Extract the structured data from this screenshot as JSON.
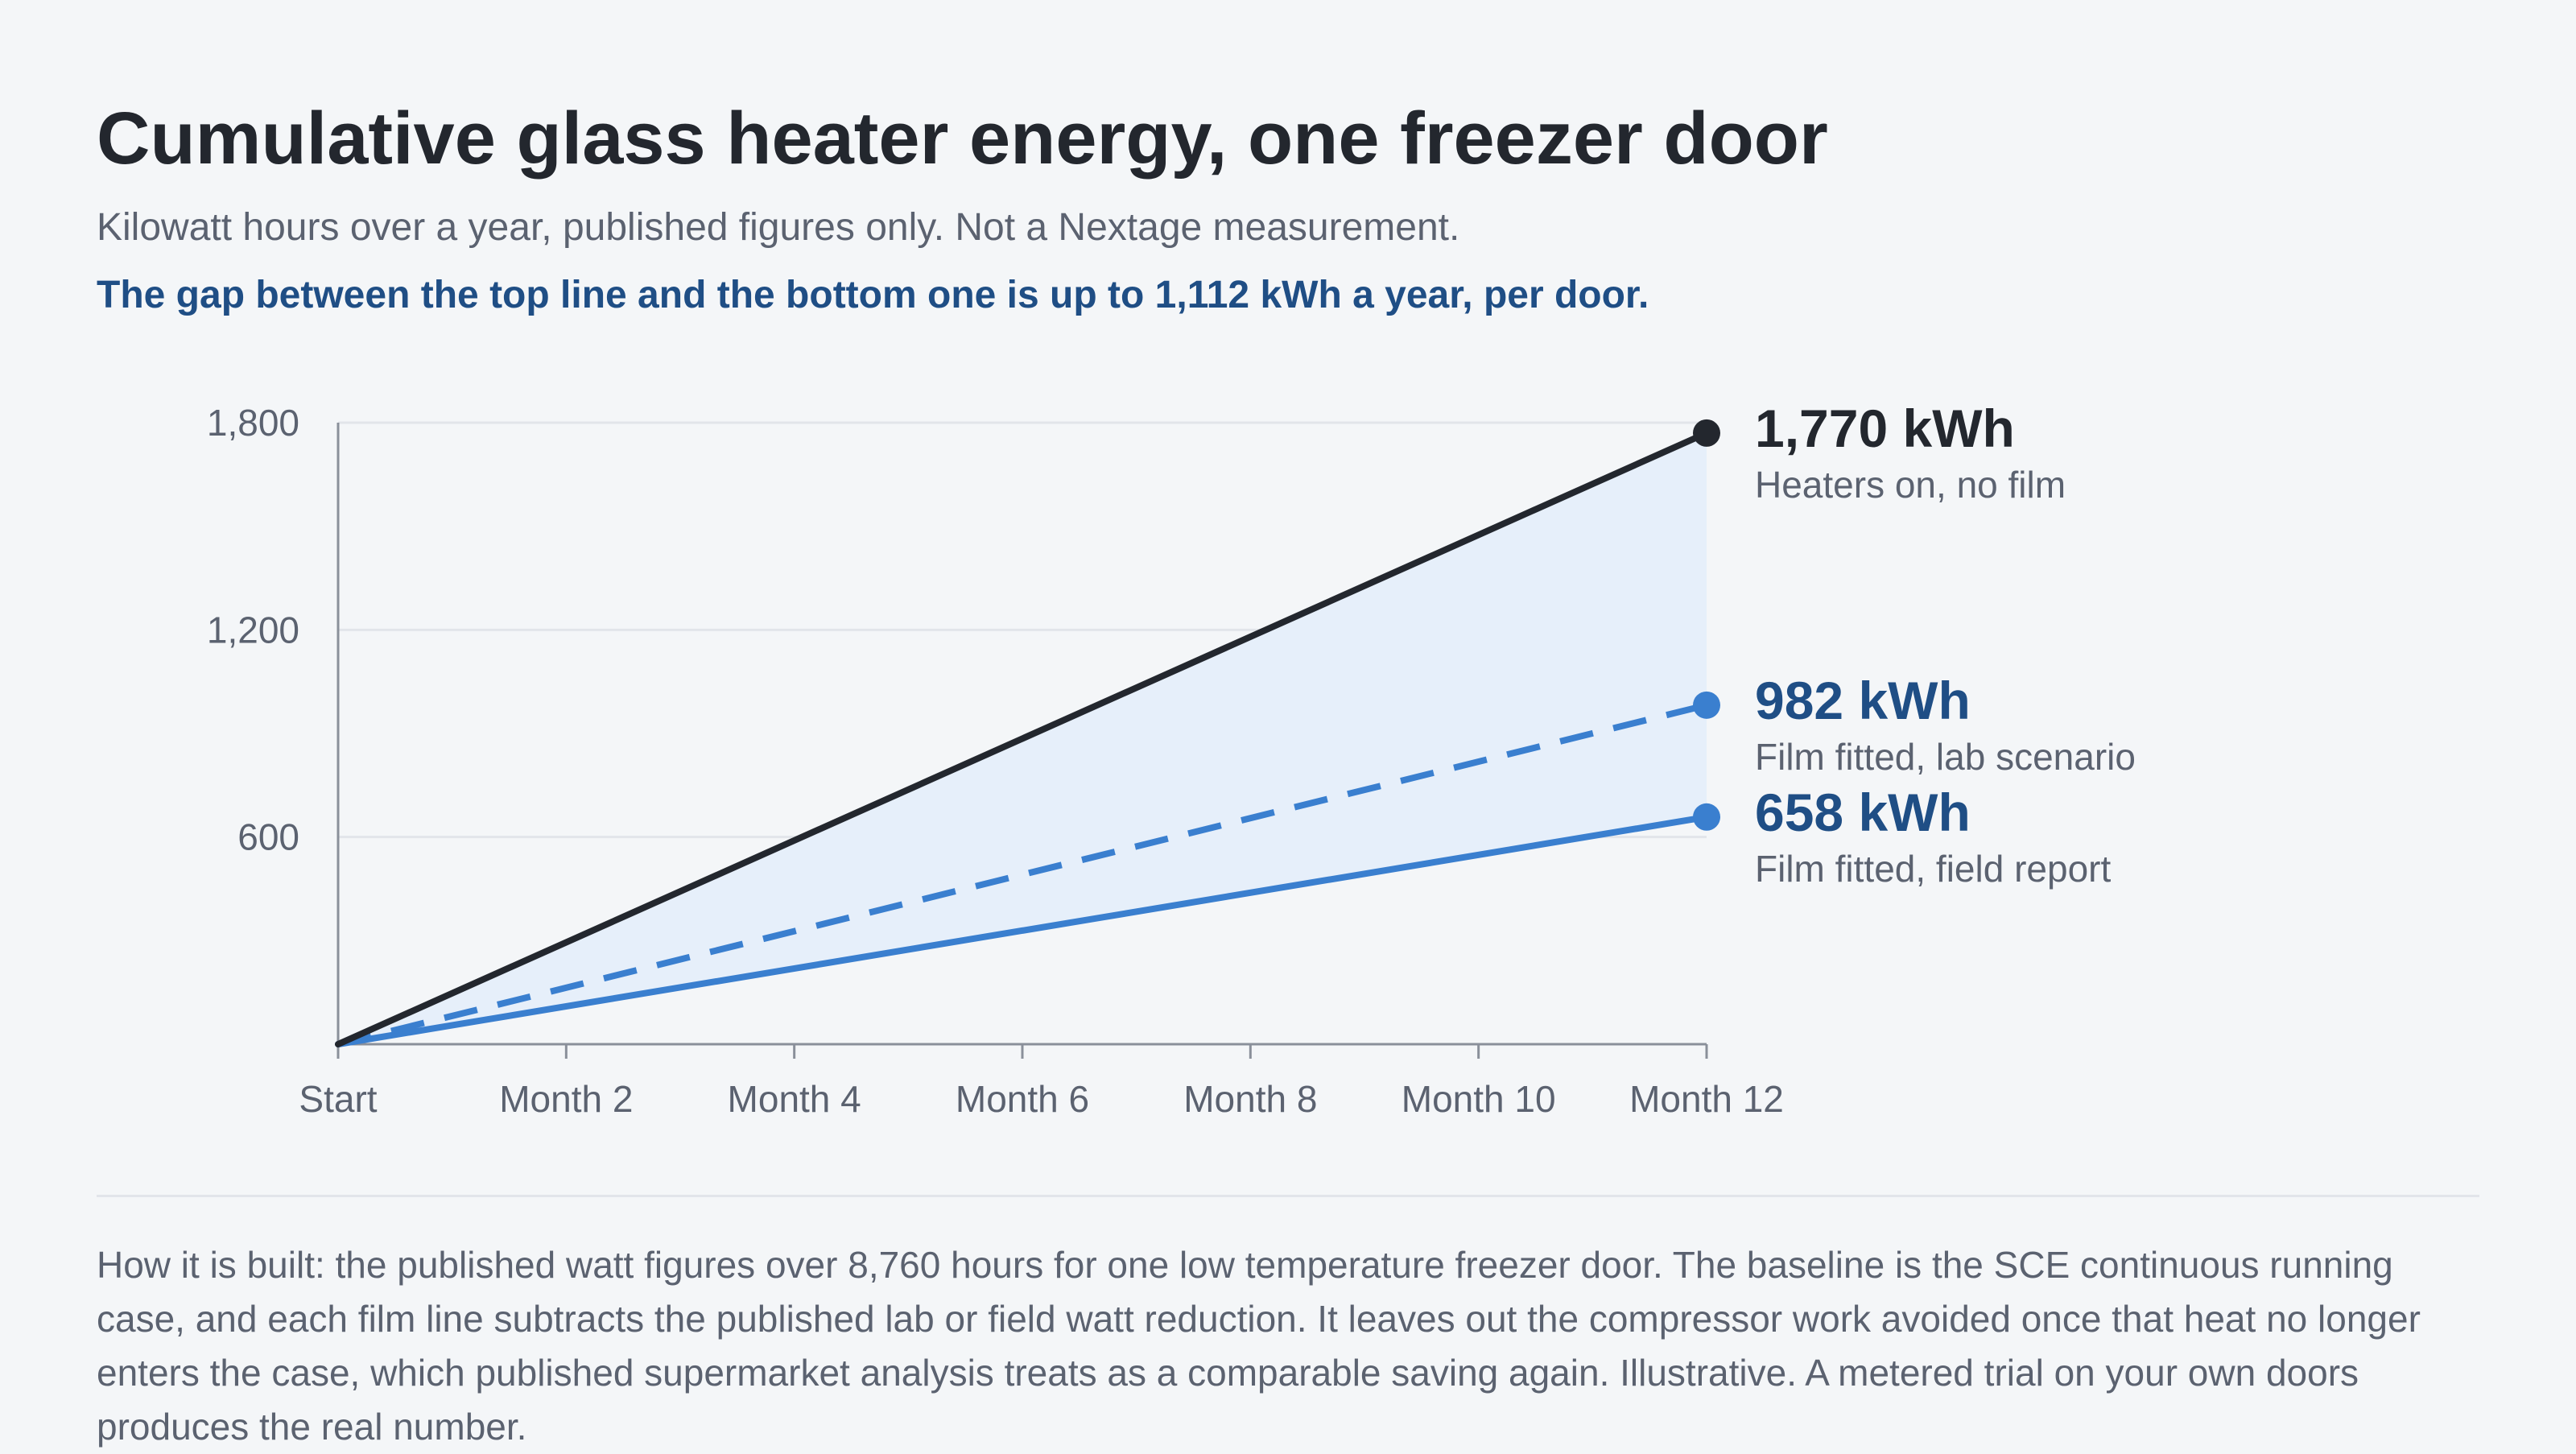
{
  "header": {
    "title": "Cumulative glass heater energy, one freezer door",
    "subtitle": "Kilowatt hours over a year, published figures only. Not a Nextage measurement.",
    "headline": "The gap between the top line and the bottom one is up to 1,112 kWh a year, per door."
  },
  "footer": {
    "note": "How it is built: the published watt figures over 8,760 hours for one low temperature freezer door. The baseline is the SCE continuous running case, and each film line subtracts the published lab or field watt reduction. It leaves out the compressor work avoided once that heat no longer enters the case, which published supermarket analysis treats as a comparable saving again. Illustrative. A metered trial on your own doors produces the real number."
  },
  "chart_data": {
    "type": "line",
    "x": [
      "Start",
      "Month 2",
      "Month 4",
      "Month 6",
      "Month 8",
      "Month 10",
      "Month 12"
    ],
    "x_values": [
      0,
      2,
      4,
      6,
      8,
      10,
      12
    ],
    "xlim": [
      0,
      12
    ],
    "ylim": [
      0,
      1800
    ],
    "yticks": [
      600,
      1200,
      1800
    ],
    "ytick_labels": [
      "600",
      "1,200",
      "1,800"
    ],
    "grid": true,
    "legend": "direct labels at line ends",
    "shaded_band": "between top and bottom series",
    "series": [
      {
        "name": "Heaters on, no film",
        "end_label": "1,770 kWh",
        "x": [
          0,
          12
        ],
        "y": [
          0,
          1770
        ],
        "color": "#23272e",
        "label_color": "#23272e",
        "dashed": false
      },
      {
        "name": "Film fitted, lab scenario",
        "end_label": "982 kWh",
        "x": [
          0,
          12
        ],
        "y": [
          0,
          982
        ],
        "color": "#3a7fcf",
        "label_color": "#1f4e85",
        "dashed": true
      },
      {
        "name": "Film fitted, field report",
        "end_label": "658 kWh",
        "x": [
          0,
          12
        ],
        "y": [
          0,
          658
        ],
        "color": "#3a7fcf",
        "label_color": "#1f4e85",
        "dashed": false
      }
    ],
    "colors": {
      "band_fill": "#e6effa",
      "grid": "#e2e5ea",
      "axis": "#8a909a",
      "tick_text": "#5b6270"
    }
  }
}
